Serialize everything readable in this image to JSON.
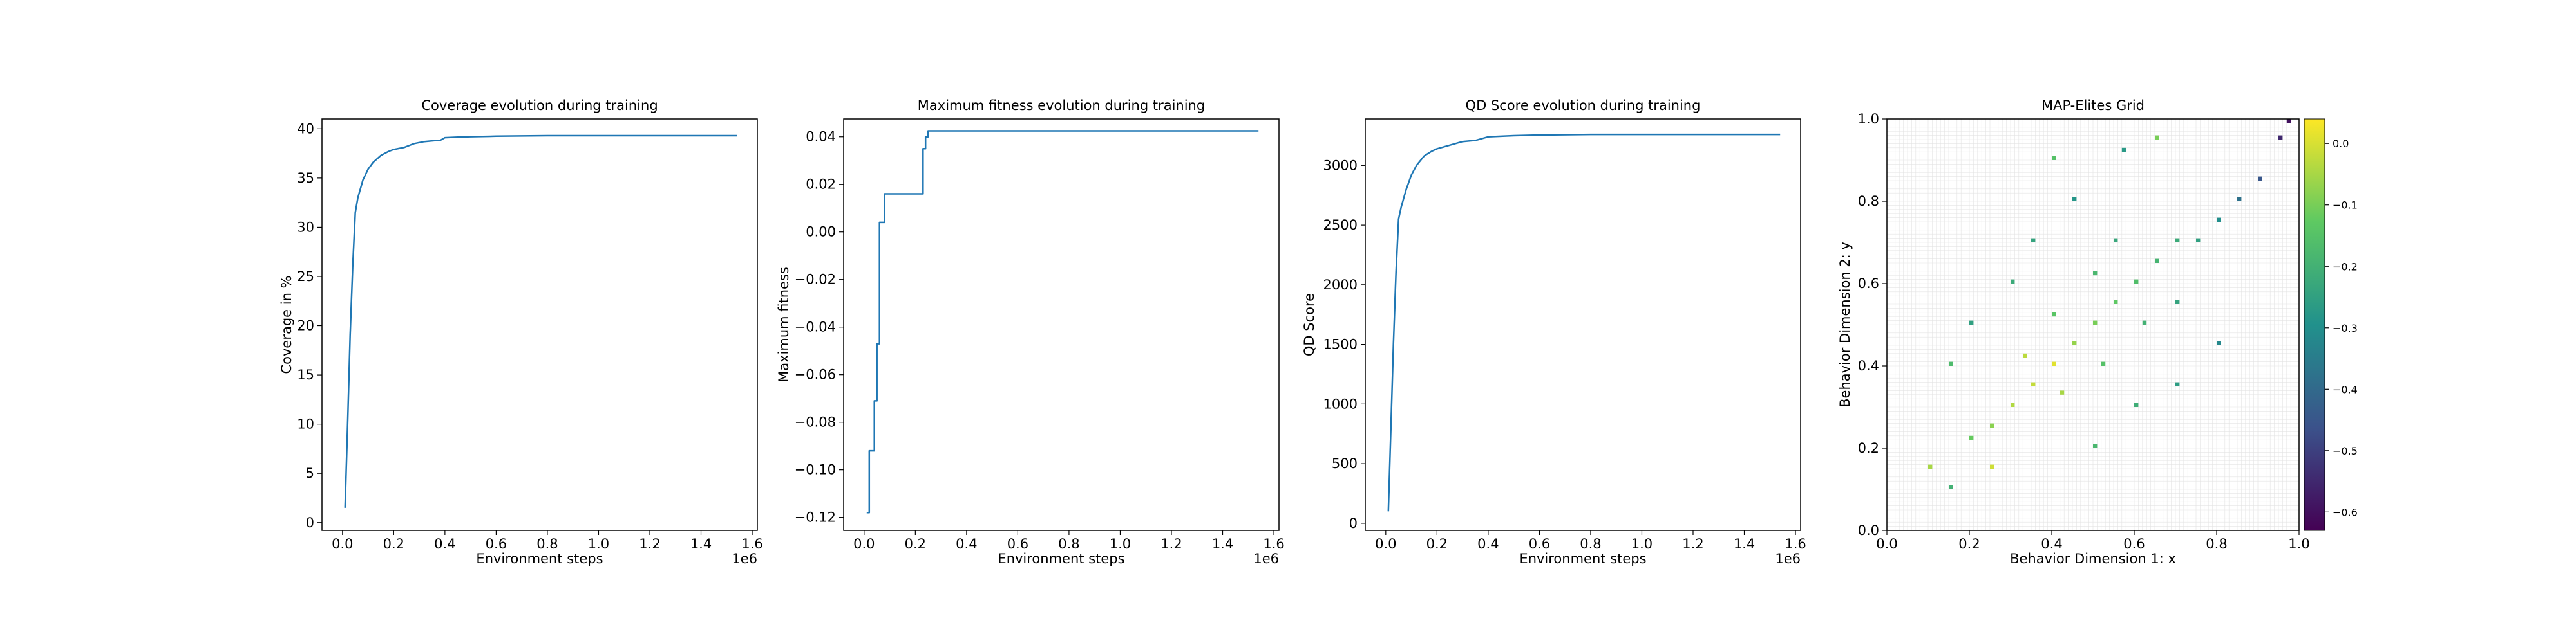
{
  "chart_data": [
    {
      "type": "line",
      "title": "Coverage evolution during training",
      "xlabel": "Environment steps",
      "ylabel": "Coverage in %",
      "x_offset_label": "1e6",
      "xlim": [
        -0.08,
        1.62
      ],
      "ylim": [
        -0.8,
        41
      ],
      "xticks": [
        0.0,
        0.2,
        0.4,
        0.6,
        0.8,
        1.0,
        1.2,
        1.4,
        1.6
      ],
      "xtick_labels": [
        "0.0",
        "0.2",
        "0.4",
        "0.6",
        "0.8",
        "1.0",
        "1.2",
        "1.4",
        "1.6"
      ],
      "yticks": [
        0,
        5,
        10,
        15,
        20,
        25,
        30,
        35,
        40
      ],
      "ytick_labels": [
        "0",
        "5",
        "10",
        "15",
        "20",
        "25",
        "30",
        "35",
        "40"
      ],
      "line_color": "#1f77b4",
      "series": [
        {
          "x": [
            0.01,
            0.02,
            0.03,
            0.04,
            0.05,
            0.06,
            0.08,
            0.1,
            0.12,
            0.15,
            0.18,
            0.2,
            0.24,
            0.28,
            0.32,
            0.36,
            0.38,
            0.4,
            0.45,
            0.5,
            0.6,
            0.8,
            1.0,
            1.2,
            1.4,
            1.54
          ],
          "y": [
            1.5,
            10.0,
            19.0,
            26.0,
            31.5,
            33.0,
            34.8,
            35.9,
            36.6,
            37.3,
            37.7,
            37.9,
            38.1,
            38.5,
            38.7,
            38.8,
            38.8,
            39.1,
            39.15,
            39.2,
            39.25,
            39.3,
            39.3,
            39.3,
            39.3,
            39.3
          ]
        }
      ]
    },
    {
      "type": "line",
      "title": "Maximum fitness evolution during training",
      "xlabel": "Environment steps",
      "ylabel": "Maximum fitness",
      "x_offset_label": "1e6",
      "xlim": [
        -0.08,
        1.62
      ],
      "ylim": [
        -0.1255,
        0.0475
      ],
      "xticks": [
        0.0,
        0.2,
        0.4,
        0.6,
        0.8,
        1.0,
        1.2,
        1.4,
        1.6
      ],
      "xtick_labels": [
        "0.0",
        "0.2",
        "0.4",
        "0.6",
        "0.8",
        "1.0",
        "1.2",
        "1.4",
        "1.6"
      ],
      "yticks": [
        -0.12,
        -0.1,
        -0.08,
        -0.06,
        -0.04,
        -0.02,
        0.0,
        0.02,
        0.04
      ],
      "ytick_labels": [
        "−0.12",
        "−0.10",
        "−0.08",
        "−0.06",
        "−0.04",
        "−0.02",
        "0.00",
        "0.02",
        "0.04"
      ],
      "line_color": "#1f77b4",
      "series": [
        {
          "x": [
            0.01,
            0.02,
            0.02,
            0.04,
            0.04,
            0.05,
            0.05,
            0.06,
            0.06,
            0.08,
            0.08,
            0.1,
            0.1,
            0.23,
            0.23,
            0.24,
            0.24,
            0.25,
            0.25,
            0.4,
            0.6,
            0.8,
            1.0,
            1.2,
            1.4,
            1.54
          ],
          "y": [
            -0.118,
            -0.118,
            -0.092,
            -0.092,
            -0.071,
            -0.071,
            -0.047,
            -0.047,
            0.004,
            0.004,
            0.016,
            0.016,
            0.016,
            0.016,
            0.035,
            0.035,
            0.04,
            0.04,
            0.0425,
            0.0425,
            0.0425,
            0.0425,
            0.0425,
            0.0425,
            0.0425,
            0.0425
          ]
        }
      ]
    },
    {
      "type": "line",
      "title": "QD Score evolution during training",
      "xlabel": "Environment steps",
      "ylabel": "QD Score",
      "x_offset_label": "1e6",
      "xlim": [
        -0.08,
        1.62
      ],
      "ylim": [
        -60,
        3390
      ],
      "xticks": [
        0.0,
        0.2,
        0.4,
        0.6,
        0.8,
        1.0,
        1.2,
        1.4,
        1.6
      ],
      "xtick_labels": [
        "0.0",
        "0.2",
        "0.4",
        "0.6",
        "0.8",
        "1.0",
        "1.2",
        "1.4",
        "1.6"
      ],
      "yticks": [
        0,
        500,
        1000,
        1500,
        2000,
        2500,
        3000
      ],
      "ytick_labels": [
        "0",
        "500",
        "1000",
        "1500",
        "2000",
        "2500",
        "3000"
      ],
      "line_color": "#1f77b4",
      "series": [
        {
          "x": [
            0.01,
            0.02,
            0.03,
            0.04,
            0.05,
            0.06,
            0.08,
            0.1,
            0.12,
            0.15,
            0.18,
            0.2,
            0.25,
            0.3,
            0.35,
            0.4,
            0.45,
            0.5,
            0.6,
            0.8,
            1.0,
            1.2,
            1.4,
            1.54
          ],
          "y": [
            100,
            800,
            1500,
            2100,
            2550,
            2650,
            2800,
            2920,
            3000,
            3080,
            3120,
            3140,
            3170,
            3200,
            3210,
            3240,
            3245,
            3250,
            3255,
            3260,
            3260,
            3260,
            3260,
            3260
          ]
        }
      ]
    },
    {
      "type": "heatmap",
      "title": "MAP-Elites Grid",
      "xlabel": "Behavior Dimension 1: x",
      "ylabel": "Behavior Dimension 2: y",
      "xlim": [
        0.0,
        1.0
      ],
      "ylim": [
        0.0,
        1.0
      ],
      "xticks": [
        0.0,
        0.2,
        0.4,
        0.6,
        0.8,
        1.0
      ],
      "xtick_labels": [
        "0.0",
        "0.2",
        "0.4",
        "0.6",
        "0.8",
        "1.0"
      ],
      "yticks": [
        0.0,
        0.2,
        0.4,
        0.6,
        0.8,
        1.0
      ],
      "ytick_labels": [
        "0.0",
        "0.2",
        "0.4",
        "0.6",
        "0.8",
        "1.0"
      ],
      "grid_resolution": [
        100,
        100
      ],
      "grid": true,
      "colormap": "viridis",
      "colorbar_range": [
        -0.63,
        0.04
      ],
      "colorbar_ticks": [
        0.0,
        -0.1,
        -0.2,
        -0.3,
        -0.4,
        -0.5,
        -0.6
      ],
      "colorbar_tick_labels": [
        "0.0",
        "−0.1",
        "−0.2",
        "−0.3",
        "−0.4",
        "−0.5",
        "−0.6"
      ],
      "cells": [
        [
          0.4,
          0.4,
          0.01
        ],
        [
          0.35,
          0.35,
          -0.02
        ],
        [
          0.3,
          0.3,
          -0.04
        ],
        [
          0.45,
          0.45,
          -0.07
        ],
        [
          0.5,
          0.5,
          -0.1
        ],
        [
          0.55,
          0.55,
          -0.13
        ],
        [
          0.6,
          0.6,
          -0.16
        ],
        [
          0.65,
          0.65,
          -0.19
        ],
        [
          0.7,
          0.7,
          -0.22
        ],
        [
          0.75,
          0.7,
          -0.25
        ],
        [
          0.25,
          0.25,
          -0.08
        ],
        [
          0.2,
          0.22,
          -0.12
        ],
        [
          0.42,
          0.33,
          -0.05
        ],
        [
          0.33,
          0.42,
          -0.03
        ],
        [
          0.52,
          0.4,
          -0.15
        ],
        [
          0.4,
          0.52,
          -0.14
        ],
        [
          0.62,
          0.5,
          -0.2
        ],
        [
          0.5,
          0.62,
          -0.18
        ],
        [
          0.7,
          0.55,
          -0.24
        ],
        [
          0.55,
          0.7,
          -0.23
        ],
        [
          0.8,
          0.75,
          -0.3
        ],
        [
          0.85,
          0.8,
          -0.38
        ],
        [
          0.9,
          0.85,
          -0.45
        ],
        [
          0.95,
          0.95,
          -0.55
        ],
        [
          0.97,
          0.99,
          -0.6
        ],
        [
          0.1,
          0.15,
          -0.05
        ],
        [
          0.15,
          0.1,
          -0.2
        ],
        [
          0.3,
          0.6,
          -0.22
        ],
        [
          0.6,
          0.3,
          -0.21
        ],
        [
          0.2,
          0.5,
          -0.25
        ],
        [
          0.5,
          0.2,
          -0.18
        ],
        [
          0.35,
          0.7,
          -0.24
        ],
        [
          0.7,
          0.35,
          -0.26
        ],
        [
          0.45,
          0.8,
          -0.28
        ],
        [
          0.8,
          0.45,
          -0.32
        ],
        [
          0.65,
          0.95,
          -0.1
        ],
        [
          0.4,
          0.9,
          -0.15
        ],
        [
          0.15,
          0.4,
          -0.17
        ],
        [
          0.25,
          0.15,
          -0.01
        ],
        [
          0.58,
          0.92,
          -0.27
        ]
      ]
    }
  ]
}
